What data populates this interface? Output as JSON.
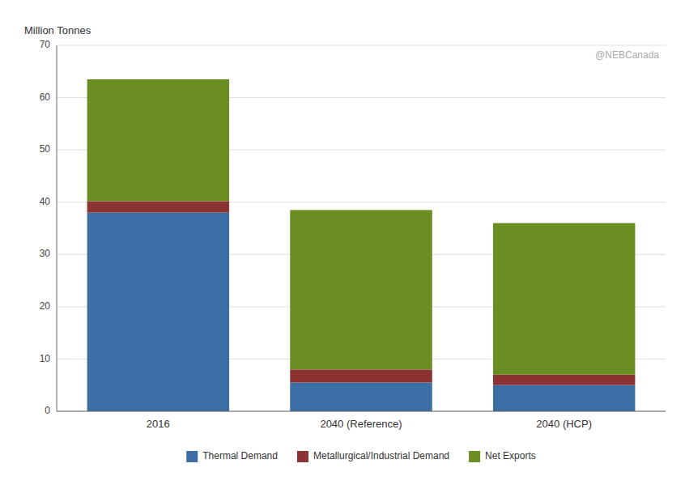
{
  "chart_data": {
    "type": "bar",
    "stacked": true,
    "categories": [
      "2016",
      "2040 (Reference)",
      "2040 (HCP)"
    ],
    "series": [
      {
        "name": "Thermal Demand",
        "color": "#3A6EA5",
        "values": [
          38.0,
          5.5,
          5.0
        ]
      },
      {
        "name": "Metallurgical/Industrial Demand",
        "color": "#8B3333",
        "values": [
          2.2,
          2.5,
          2.0
        ]
      },
      {
        "name": "Net Exports",
        "color": "#6B8E23",
        "values": [
          23.3,
          30.5,
          29.0
        ]
      }
    ],
    "ylabel": "Million Tonnes",
    "annotations": [
      "@NEBCanada"
    ],
    "ylim": [
      0,
      70
    ],
    "yticks": [
      0,
      10,
      20,
      30,
      40,
      50,
      60,
      70
    ],
    "grid": true,
    "legend": "bottom"
  }
}
